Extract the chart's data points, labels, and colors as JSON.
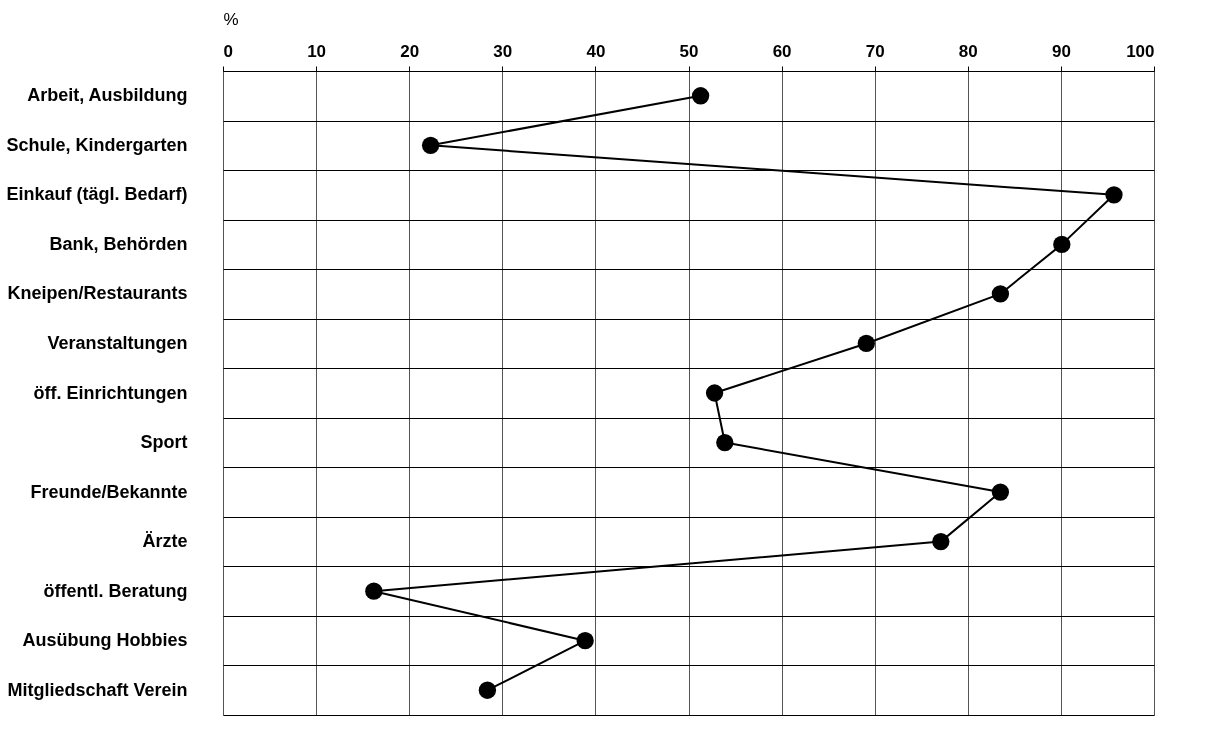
{
  "chart_data": {
    "type": "line",
    "orientation": "horizontal",
    "xlabel": "%",
    "categories": [
      "Arbeit, Ausbildung",
      "Schule, Kindergarten",
      "Einkauf (tägl. Bedarf)",
      "Bank, Behörden",
      "Kneipen/Restaurants",
      "Veranstaltungen",
      "öff. Einrichtungen",
      "Sport",
      "Freunde/Bekannte",
      "Ärzte",
      "öffentl. Beratung",
      "Ausübung Hobbies",
      "Mitgliedschaft Verein"
    ],
    "series": [
      {
        "color": "#000000",
        "values": [
          51.3,
          22.3,
          95.7,
          90.1,
          83.5,
          69.1,
          52.8,
          53.9,
          83.5,
          77.1,
          16.2,
          38.9,
          28.4
        ]
      }
    ],
    "xlim": [
      0,
      100
    ],
    "xticks": [
      0,
      10,
      20,
      30,
      40,
      50,
      60,
      70,
      80,
      90,
      100
    ],
    "grid": true,
    "marker": "circle",
    "line_style": "solid"
  }
}
